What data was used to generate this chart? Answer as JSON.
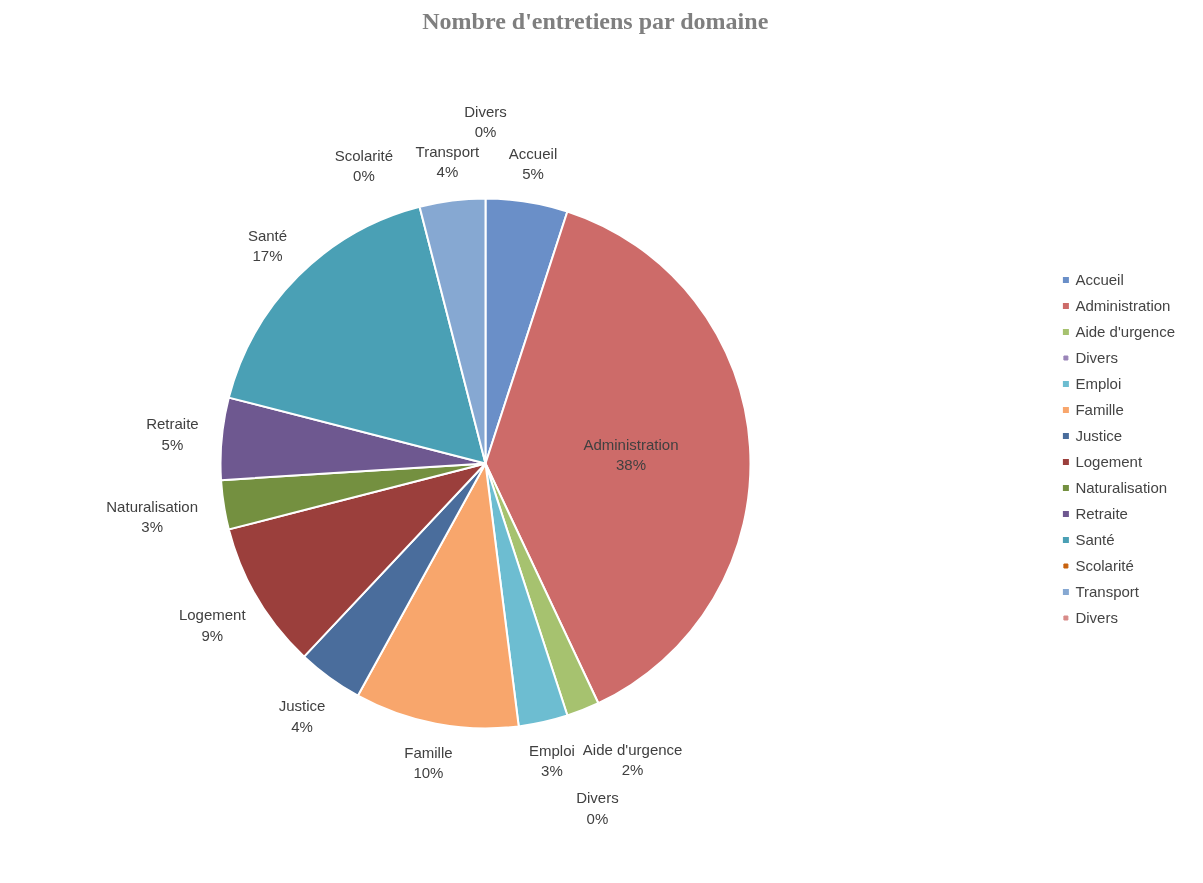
{
  "chart_data": {
    "type": "pie",
    "title": "Nombre d'entretiens par domaine",
    "categories": [
      "Accueil",
      "Administration",
      "Aide d'urgence",
      "Divers",
      "Emploi",
      "Famille",
      "Justice",
      "Logement",
      "Naturalisation",
      "Retraite",
      "Santé",
      "Scolarité",
      "Transport",
      "Divers"
    ],
    "values": [
      5,
      38,
      2,
      0,
      3,
      10,
      4,
      9,
      3,
      5,
      17,
      0,
      4,
      0
    ],
    "value_labels": [
      "5%",
      "38%",
      "2%",
      "0%",
      "3%",
      "10%",
      "4%",
      "9%",
      "3%",
      "5%",
      "17%",
      "0%",
      "4%",
      "0%"
    ],
    "colors": [
      "#6a8fc8",
      "#cd6b69",
      "#a6c26f",
      "#9a84b8",
      "#6dbdd1",
      "#f8a66c",
      "#4a6d9c",
      "#9b3f3c",
      "#749040",
      "#6e5890",
      "#4aa0b5",
      "#c8620f",
      "#86a8d2",
      "#d88a88"
    ],
    "legend": "right"
  }
}
